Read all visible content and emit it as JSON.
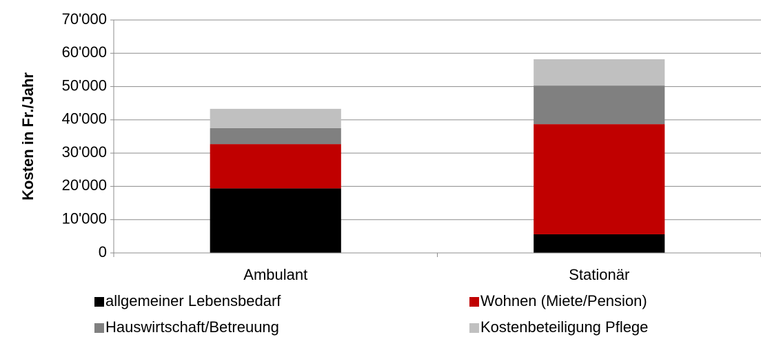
{
  "chart_data": {
    "type": "stacked_bar",
    "ylabel": "Kosten in Fr./Jahr",
    "categories": [
      "Ambulant",
      "Stationär"
    ],
    "series": [
      {
        "name": "allgemeiner Lebensbedarf",
        "color": "#000000",
        "values": [
          19400,
          5600
        ]
      },
      {
        "name": "Wohnen (Miete/Pension)",
        "color": "#c00000",
        "values": [
          13300,
          33100
        ]
      },
      {
        "name": "Hauswirtschaft/Betreuung",
        "color": "#808080",
        "values": [
          4800,
          11600
        ]
      },
      {
        "name": "Kostenbeteiligung Pflege",
        "color": "#c0c0c0",
        "values": [
          5800,
          7900
        ]
      }
    ],
    "ylim": [
      0,
      70000
    ],
    "yticks": [
      0,
      {
        "value": 10000,
        "label": "10'000"
      },
      {
        "value": 20000,
        "label": "20'000"
      },
      {
        "value": 30000,
        "label": "30'000"
      },
      {
        "value": 40000,
        "label": "40'000"
      },
      {
        "value": 50000,
        "label": "50'000"
      },
      {
        "value": 60000,
        "label": "60'000"
      },
      {
        "value": 70000,
        "label": "70'000"
      }
    ],
    "grid": true
  }
}
